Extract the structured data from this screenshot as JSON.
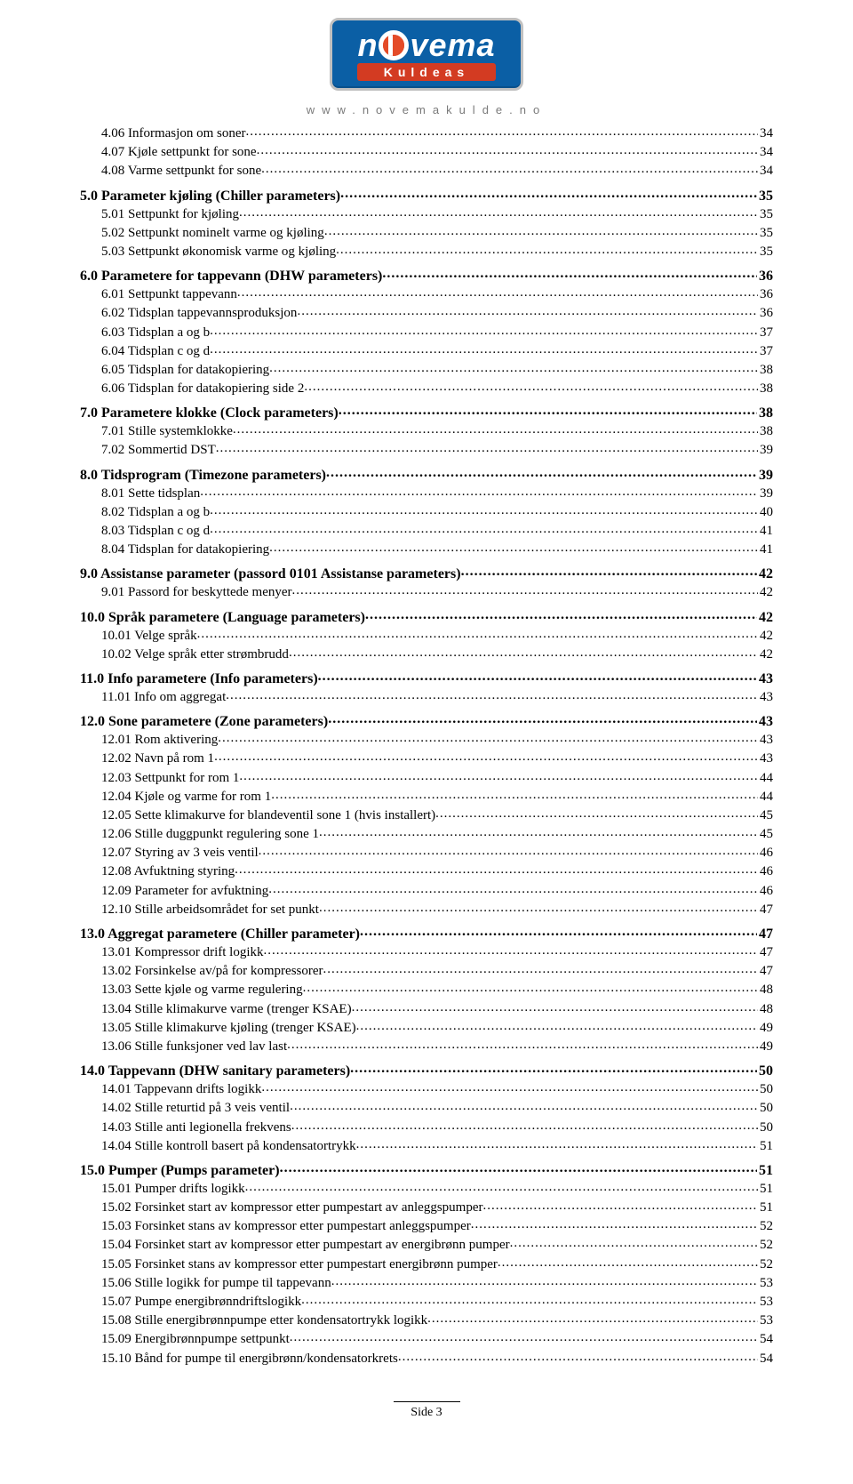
{
  "logo": {
    "brand_left": "n",
    "brand_right": "vema",
    "subtitle": "Kuldeas"
  },
  "header_url": "www.novemakulde.no",
  "footer": "Side 3",
  "toc": [
    {
      "level": 2,
      "label": "4.06 Informasjon om soner",
      "page": "34"
    },
    {
      "level": 2,
      "label": "4.07 Kjøle settpunkt for sone",
      "page": "34"
    },
    {
      "level": 2,
      "label": "4.08 Varme settpunkt for sone",
      "page": "34"
    },
    {
      "level": 1,
      "label": "5.0 Parameter kjøling (Chiller parameters)",
      "page": "35"
    },
    {
      "level": 2,
      "label": "5.01 Settpunkt for kjøling",
      "page": "35"
    },
    {
      "level": 2,
      "label": "5.02 Settpunkt nominelt varme og kjøling",
      "page": "35"
    },
    {
      "level": 2,
      "label": "5.03 Settpunkt økonomisk varme og kjøling",
      "page": "35"
    },
    {
      "level": 1,
      "label": "6.0 Parametere for tappevann (DHW parameters)",
      "page": "36"
    },
    {
      "level": 2,
      "label": "6.01 Settpunkt tappevann",
      "page": "36"
    },
    {
      "level": 2,
      "label": "6.02 Tidsplan tappevannsproduksjon",
      "page": "36"
    },
    {
      "level": 2,
      "label": "6.03 Tidsplan a og b",
      "page": "37"
    },
    {
      "level": 2,
      "label": "6.04 Tidsplan c og d",
      "page": "37"
    },
    {
      "level": 2,
      "label": "6.05 Tidsplan for datakopiering",
      "page": "38"
    },
    {
      "level": 2,
      "label": "6.06 Tidsplan for datakopiering side 2",
      "page": "38"
    },
    {
      "level": 1,
      "label": "7.0 Parametere klokke (Clock parameters)",
      "page": "38"
    },
    {
      "level": 2,
      "label": "7.01 Stille systemklokke",
      "page": "38"
    },
    {
      "level": 2,
      "label": "7.02 Sommertid DST",
      "page": "39"
    },
    {
      "level": 1,
      "label": "8.0 Tidsprogram (Timezone parameters)",
      "page": "39"
    },
    {
      "level": 2,
      "label": "8.01 Sette tidsplan",
      "page": "39"
    },
    {
      "level": 2,
      "label": "8.02 Tidsplan a og b",
      "page": "40"
    },
    {
      "level": 2,
      "label": "8.03 Tidsplan c og d",
      "page": "41"
    },
    {
      "level": 2,
      "label": "8.04 Tidsplan for datakopiering",
      "page": "41"
    },
    {
      "level": 1,
      "label": "9.0 Assistanse parameter (passord 0101 Assistanse parameters)",
      "page": "42"
    },
    {
      "level": 2,
      "label": "9.01 Passord for beskyttede menyer",
      "page": "42"
    },
    {
      "level": 1,
      "label": "10.0 Språk parametere (Language parameters)",
      "page": "42"
    },
    {
      "level": 2,
      "label": "10.01 Velge språk",
      "page": "42"
    },
    {
      "level": 2,
      "label": "10.02 Velge språk etter strømbrudd",
      "page": "42"
    },
    {
      "level": 1,
      "label": "11.0 Info parametere (Info parameters)",
      "page": "43"
    },
    {
      "level": 2,
      "label": "11.01 Info om aggregat",
      "page": "43"
    },
    {
      "level": 1,
      "label": "12.0 Sone parametere (Zone parameters)",
      "page": "43"
    },
    {
      "level": 2,
      "label": "12.01 Rom aktivering",
      "page": "43"
    },
    {
      "level": 2,
      "label": "12.02 Navn på rom 1",
      "page": "43"
    },
    {
      "level": 2,
      "label": "12.03 Settpunkt for rom 1",
      "page": "44"
    },
    {
      "level": 2,
      "label": "12.04 Kjøle og varme for rom 1",
      "page": "44"
    },
    {
      "level": 2,
      "label": "12.05 Sette klimakurve for blandeventil sone 1 (hvis installert)",
      "page": "45"
    },
    {
      "level": 2,
      "label": "12.06 Stille duggpunkt regulering sone 1",
      "page": "45"
    },
    {
      "level": 2,
      "label": "12.07 Styring av 3 veis ventil",
      "page": "46"
    },
    {
      "level": 2,
      "label": "12.08 Avfuktning styring",
      "page": "46"
    },
    {
      "level": 2,
      "label": "12.09 Parameter for avfuktning",
      "page": "46"
    },
    {
      "level": 2,
      "label": "12.10 Stille arbeidsområdet for set punkt",
      "page": "47"
    },
    {
      "level": 1,
      "label": "13.0 Aggregat parametere (Chiller parameter)",
      "page": "47"
    },
    {
      "level": 2,
      "label": "13.01 Kompressor drift logikk",
      "page": "47"
    },
    {
      "level": 2,
      "label": "13.02 Forsinkelse av/på for kompressorer",
      "page": "47"
    },
    {
      "level": 2,
      "label": "13.03 Sette kjøle og varme regulering",
      "page": "48"
    },
    {
      "level": 2,
      "label": "13.04 Stille klimakurve varme (trenger KSAE)",
      "page": "48"
    },
    {
      "level": 2,
      "label": "13.05 Stille klimakurve kjøling (trenger KSAE)",
      "page": "49"
    },
    {
      "level": 2,
      "label": "13.06 Stille funksjoner ved lav last",
      "page": "49"
    },
    {
      "level": 1,
      "label": "14.0 Tappevann (DHW sanitary parameters)",
      "page": "50"
    },
    {
      "level": 2,
      "label": "14.01 Tappevann drifts logikk",
      "page": "50"
    },
    {
      "level": 2,
      "label": "14.02 Stille returtid på 3 veis ventil",
      "page": "50"
    },
    {
      "level": 2,
      "label": "14.03 Stille anti legionella frekvens",
      "page": "50"
    },
    {
      "level": 2,
      "label": "14.04 Stille kontroll basert på kondensatortrykk",
      "page": "51"
    },
    {
      "level": 1,
      "label": "15.0 Pumper (Pumps parameter)",
      "page": "51"
    },
    {
      "level": 2,
      "label": "15.01 Pumper drifts logikk",
      "page": "51"
    },
    {
      "level": 2,
      "label": "15.02 Forsinket start av kompressor etter pumpestart av anleggspumper",
      "page": "51"
    },
    {
      "level": 2,
      "label": "15.03 Forsinket stans av kompressor etter pumpestart anleggspumper",
      "page": "52"
    },
    {
      "level": 2,
      "label": "15.04 Forsinket start av kompressor etter pumpestart av energibrønn pumper",
      "page": "52"
    },
    {
      "level": 2,
      "label": "15.05 Forsinket stans av kompressor etter pumpestart energibrønn pumper",
      "page": "52"
    },
    {
      "level": 2,
      "label": "15.06 Stille logikk for pumpe til tappevann",
      "page": "53"
    },
    {
      "level": 2,
      "label": "15.07 Pumpe energibrønndriftslogikk",
      "page": "53"
    },
    {
      "level": 2,
      "label": "15.08 Stille energibrønnpumpe etter kondensatortrykk logikk",
      "page": "53"
    },
    {
      "level": 2,
      "label": "15.09 Energibrønnpumpe settpunkt",
      "page": "54"
    },
    {
      "level": 2,
      "label": "15.10 Bånd for pumpe til energibrønn/kondensatorkrets",
      "page": "54"
    }
  ]
}
